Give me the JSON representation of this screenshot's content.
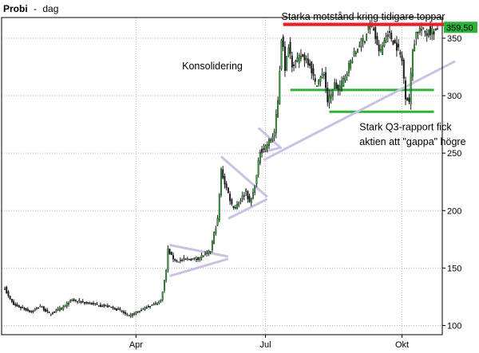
{
  "chart_data": {
    "type": "candlestick",
    "title": "Probi",
    "title_separator": "-",
    "subtitle": "dag",
    "last_price_label": "359,50",
    "ylim": [
      92,
      368
    ],
    "ylabel_side": "right",
    "yticks": [
      {
        "value": 100,
        "label": "100"
      },
      {
        "value": 150,
        "label": "150"
      },
      {
        "value": 200,
        "label": "200"
      },
      {
        "value": 250,
        "label": "250"
      },
      {
        "value": 300,
        "label": "300"
      },
      {
        "value": 350,
        "label": "350"
      }
    ],
    "xticks": [
      {
        "index": 74,
        "label": "Apr"
      },
      {
        "index": 147,
        "label": "Jul"
      },
      {
        "index": 224,
        "label": "Okt"
      }
    ],
    "n_days": 245,
    "anchors": [
      [
        0,
        133
      ],
      [
        2,
        125
      ],
      [
        5,
        118
      ],
      [
        10,
        115
      ],
      [
        15,
        112
      ],
      [
        20,
        117
      ],
      [
        25,
        110
      ],
      [
        28,
        112
      ],
      [
        32,
        115
      ],
      [
        38,
        122
      ],
      [
        45,
        120
      ],
      [
        52,
        118
      ],
      [
        60,
        116
      ],
      [
        65,
        113
      ],
      [
        70,
        108
      ],
      [
        75,
        112
      ],
      [
        80,
        116
      ],
      [
        85,
        119
      ],
      [
        88,
        122
      ],
      [
        89,
        130
      ],
      [
        91,
        148
      ],
      [
        92,
        166
      ],
      [
        94,
        160
      ],
      [
        97,
        156
      ],
      [
        100,
        157
      ],
      [
        104,
        158
      ],
      [
        108,
        158
      ],
      [
        112,
        161
      ],
      [
        114,
        162
      ],
      [
        116,
        165
      ],
      [
        118,
        180
      ],
      [
        120,
        192
      ],
      [
        122,
        235
      ],
      [
        124,
        224
      ],
      [
        126,
        215
      ],
      [
        128,
        205
      ],
      [
        130,
        203
      ],
      [
        132,
        208
      ],
      [
        134,
        212
      ],
      [
        136,
        218
      ],
      [
        138,
        206
      ],
      [
        140,
        215
      ],
      [
        142,
        230
      ],
      [
        144,
        252
      ],
      [
        146,
        254
      ],
      [
        148,
        258
      ],
      [
        150,
        262
      ],
      [
        152,
        268
      ],
      [
        154,
        295
      ],
      [
        156,
        350
      ],
      [
        157,
        345
      ],
      [
        158,
        320
      ],
      [
        160,
        345
      ],
      [
        162,
        328
      ],
      [
        165,
        330
      ],
      [
        167,
        335
      ],
      [
        170,
        332
      ],
      [
        172,
        328
      ],
      [
        175,
        310
      ],
      [
        178,
        315
      ],
      [
        180,
        320
      ],
      [
        182,
        295
      ],
      [
        184,
        300
      ],
      [
        186,
        310
      ],
      [
        188,
        305
      ],
      [
        190,
        310
      ],
      [
        192,
        318
      ],
      [
        195,
        330
      ],
      [
        198,
        338
      ],
      [
        200,
        345
      ],
      [
        203,
        350
      ],
      [
        205,
        360
      ],
      [
        208,
        358
      ],
      [
        210,
        342
      ],
      [
        212,
        338
      ],
      [
        214,
        348
      ],
      [
        216,
        355
      ],
      [
        218,
        350
      ],
      [
        220,
        345
      ],
      [
        222,
        340
      ],
      [
        224,
        330
      ],
      [
        226,
        300
      ],
      [
        228,
        295
      ],
      [
        230,
        340
      ],
      [
        232,
        355
      ],
      [
        234,
        358
      ],
      [
        236,
        356
      ],
      [
        238,
        354
      ],
      [
        239,
        358
      ],
      [
        240,
        356
      ]
    ],
    "lines": [
      {
        "name": "resistance",
        "color": "#e8202a",
        "width": 4,
        "from": [
          157,
          362
        ],
        "to": [
          254,
          362
        ]
      },
      {
        "name": "support-upper",
        "color": "#2fb23a",
        "width": 3,
        "from": [
          161,
          305
        ],
        "to": [
          242,
          305
        ]
      },
      {
        "name": "support-lower",
        "color": "#2fb23a",
        "width": 3,
        "from": [
          183,
          286
        ],
        "to": [
          242,
          286
        ]
      },
      {
        "name": "trendline",
        "color": "#c9c3e3",
        "width": 3,
        "from": [
          146,
          244
        ],
        "to": [
          254,
          330
        ]
      },
      {
        "name": "triangle-1-upper",
        "color": "#c9c3e3",
        "width": 3,
        "from": [
          93,
          170
        ],
        "to": [
          126,
          160
        ]
      },
      {
        "name": "triangle-1-lower",
        "color": "#c9c3e3",
        "width": 3,
        "from": [
          93,
          143
        ],
        "to": [
          126,
          158
        ]
      },
      {
        "name": "triangle-2-upper",
        "color": "#c9c3e3",
        "width": 3,
        "from": [
          122,
          247
        ],
        "to": [
          148,
          212
        ]
      },
      {
        "name": "triangle-2-lower",
        "color": "#c9c3e3",
        "width": 3,
        "from": [
          126,
          193
        ],
        "to": [
          148,
          210
        ]
      },
      {
        "name": "triangle-3-upper",
        "color": "#c9c3e3",
        "width": 3,
        "from": [
          143,
          272
        ],
        "to": [
          156,
          254
        ]
      },
      {
        "name": "triangle-3-lower",
        "color": "#c9c3e3",
        "width": 3,
        "from": [
          143,
          250
        ],
        "to": [
          156,
          255
        ]
      }
    ],
    "annotations": [
      {
        "text": "Starka motstånd kring tidigare toppar",
        "at": [
          156,
          366
        ]
      },
      {
        "text": "Konsolidering",
        "at": [
          100,
          323
        ]
      },
      {
        "text": "Stark Q3-rapport fick",
        "at": [
          200,
          270
        ]
      },
      {
        "text": "aktien att \"gappa\" högre",
        "at": [
          200,
          257
        ]
      }
    ],
    "colors": {
      "up_body": "#2fb23a",
      "down_body": "#1a1a1a",
      "wick": "#1a1a1a",
      "grid": "#b8b8b8",
      "last_price_box": "#2fb23a"
    },
    "grid": true
  }
}
